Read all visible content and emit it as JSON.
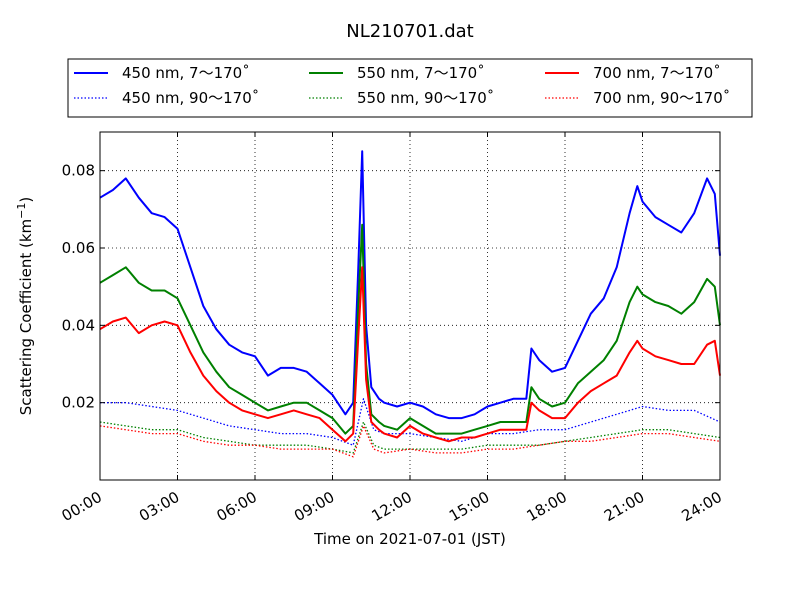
{
  "chart_data": {
    "type": "line",
    "title": "NL210701.dat",
    "xlabel": "Time on 2021-07-01 (JST)",
    "ylabel_main": "Scattering Coefficient (km",
    "ylabel_sup": "−1",
    "ylabel_close": ")",
    "xlim_hours": [
      0,
      24
    ],
    "ylim": [
      0,
      0.09
    ],
    "grid": true,
    "legend_position": "top, above plot",
    "x_ticks": [
      {
        "h": 0,
        "label": "00:00"
      },
      {
        "h": 3,
        "label": "03:00"
      },
      {
        "h": 6,
        "label": "06:00"
      },
      {
        "h": 9,
        "label": "09:00"
      },
      {
        "h": 12,
        "label": "12:00"
      },
      {
        "h": 15,
        "label": "15:00"
      },
      {
        "h": 18,
        "label": "18:00"
      },
      {
        "h": 21,
        "label": "21:00"
      },
      {
        "h": 24,
        "label": "24:00"
      }
    ],
    "y_ticks": [
      {
        "v": 0.02,
        "label": "0.02"
      },
      {
        "v": 0.04,
        "label": "0.04"
      },
      {
        "v": 0.06,
        "label": "0.06"
      },
      {
        "v": 0.08,
        "label": "0.08"
      }
    ],
    "series": [
      {
        "name": "450 nm, 7～170˚",
        "color": "#0000ff",
        "style": "solid",
        "x": [
          0,
          0.5,
          1,
          1.5,
          2,
          2.5,
          3,
          3.5,
          4,
          4.5,
          5,
          5.5,
          6,
          6.5,
          7,
          7.5,
          8,
          8.5,
          9,
          9.5,
          9.8,
          10,
          10.15,
          10.3,
          10.5,
          10.8,
          11,
          11.5,
          12,
          12.5,
          13,
          13.5,
          14,
          14.5,
          15,
          15.5,
          16,
          16.5,
          16.7,
          17,
          17.5,
          18,
          18.5,
          19,
          19.5,
          20,
          20.5,
          20.8,
          21,
          21.5,
          22,
          22.5,
          23,
          23.5,
          23.8,
          24
        ],
        "y": [
          0.073,
          0.075,
          0.078,
          0.073,
          0.069,
          0.068,
          0.065,
          0.055,
          0.045,
          0.039,
          0.035,
          0.033,
          0.032,
          0.027,
          0.029,
          0.029,
          0.028,
          0.025,
          0.022,
          0.017,
          0.02,
          0.055,
          0.085,
          0.04,
          0.024,
          0.021,
          0.02,
          0.019,
          0.02,
          0.019,
          0.017,
          0.016,
          0.016,
          0.017,
          0.019,
          0.02,
          0.021,
          0.021,
          0.034,
          0.031,
          0.028,
          0.029,
          0.036,
          0.043,
          0.047,
          0.055,
          0.069,
          0.076,
          0.072,
          0.068,
          0.066,
          0.064,
          0.069,
          0.078,
          0.074,
          0.058
        ]
      },
      {
        "name": "550 nm, 7～170˚",
        "color": "#008000",
        "style": "solid",
        "x": [
          0,
          0.5,
          1,
          1.5,
          2,
          2.5,
          3,
          3.5,
          4,
          4.5,
          5,
          5.5,
          6,
          6.5,
          7,
          7.5,
          8,
          8.5,
          9,
          9.5,
          9.8,
          10,
          10.15,
          10.3,
          10.5,
          10.8,
          11,
          11.5,
          12,
          12.5,
          13,
          13.5,
          14,
          14.5,
          15,
          15.5,
          16,
          16.5,
          16.7,
          17,
          17.5,
          18,
          18.5,
          19,
          19.5,
          20,
          20.5,
          20.8,
          21,
          21.5,
          22,
          22.5,
          23,
          23.5,
          23.8,
          24
        ],
        "y": [
          0.051,
          0.053,
          0.055,
          0.051,
          0.049,
          0.049,
          0.047,
          0.04,
          0.033,
          0.028,
          0.024,
          0.022,
          0.02,
          0.018,
          0.019,
          0.02,
          0.02,
          0.018,
          0.016,
          0.012,
          0.014,
          0.045,
          0.066,
          0.03,
          0.017,
          0.015,
          0.014,
          0.013,
          0.016,
          0.014,
          0.012,
          0.012,
          0.012,
          0.013,
          0.014,
          0.015,
          0.015,
          0.015,
          0.024,
          0.021,
          0.019,
          0.02,
          0.025,
          0.028,
          0.031,
          0.036,
          0.046,
          0.05,
          0.048,
          0.046,
          0.045,
          0.043,
          0.046,
          0.052,
          0.05,
          0.04
        ]
      },
      {
        "name": "700 nm, 7～170˚",
        "color": "#ff0000",
        "style": "solid",
        "x": [
          0,
          0.5,
          1,
          1.5,
          2,
          2.5,
          3,
          3.5,
          4,
          4.5,
          5,
          5.5,
          6,
          6.5,
          7,
          7.5,
          8,
          8.5,
          9,
          9.5,
          9.8,
          10,
          10.15,
          10.3,
          10.5,
          10.8,
          11,
          11.5,
          12,
          12.5,
          13,
          13.5,
          14,
          14.5,
          15,
          15.5,
          16,
          16.5,
          16.7,
          17,
          17.5,
          18,
          18.5,
          19,
          19.5,
          20,
          20.5,
          20.8,
          21,
          21.5,
          22,
          22.5,
          23,
          23.5,
          23.8,
          24
        ],
        "y": [
          0.039,
          0.041,
          0.042,
          0.038,
          0.04,
          0.041,
          0.04,
          0.033,
          0.027,
          0.023,
          0.02,
          0.018,
          0.017,
          0.016,
          0.017,
          0.018,
          0.017,
          0.016,
          0.013,
          0.01,
          0.012,
          0.037,
          0.055,
          0.026,
          0.015,
          0.013,
          0.012,
          0.011,
          0.014,
          0.012,
          0.011,
          0.01,
          0.011,
          0.011,
          0.012,
          0.013,
          0.013,
          0.013,
          0.02,
          0.018,
          0.016,
          0.016,
          0.02,
          0.023,
          0.025,
          0.027,
          0.033,
          0.036,
          0.034,
          0.032,
          0.031,
          0.03,
          0.03,
          0.035,
          0.036,
          0.027
        ]
      },
      {
        "name": "450 nm, 90～170˚",
        "color": "#0000ff",
        "style": "dotted",
        "x": [
          0,
          1,
          2,
          3,
          4,
          5,
          6,
          7,
          8,
          9,
          9.8,
          10.2,
          10.6,
          11,
          12,
          13,
          14,
          15,
          16,
          17,
          18,
          19,
          20,
          21,
          22,
          23,
          24
        ],
        "y": [
          0.02,
          0.02,
          0.019,
          0.018,
          0.016,
          0.014,
          0.013,
          0.012,
          0.012,
          0.011,
          0.009,
          0.021,
          0.013,
          0.012,
          0.012,
          0.011,
          0.01,
          0.012,
          0.012,
          0.013,
          0.013,
          0.015,
          0.017,
          0.019,
          0.018,
          0.018,
          0.015
        ]
      },
      {
        "name": "550 nm, 90～170˚",
        "color": "#008000",
        "style": "dotted",
        "x": [
          0,
          1,
          2,
          3,
          4,
          5,
          6,
          7,
          8,
          9,
          9.8,
          10.2,
          10.6,
          11,
          12,
          13,
          14,
          15,
          16,
          17,
          18,
          19,
          20,
          21,
          22,
          23,
          24
        ],
        "y": [
          0.015,
          0.014,
          0.013,
          0.013,
          0.011,
          0.01,
          0.009,
          0.009,
          0.009,
          0.008,
          0.007,
          0.015,
          0.009,
          0.008,
          0.008,
          0.008,
          0.008,
          0.009,
          0.009,
          0.009,
          0.01,
          0.011,
          0.012,
          0.013,
          0.013,
          0.012,
          0.011
        ]
      },
      {
        "name": "700 nm, 90～170˚",
        "color": "#ff0000",
        "style": "dotted",
        "x": [
          0,
          1,
          2,
          3,
          4,
          5,
          6,
          7,
          8,
          9,
          9.8,
          10.2,
          10.6,
          11,
          12,
          13,
          14,
          15,
          16,
          17,
          18,
          19,
          20,
          21,
          22,
          23,
          24
        ],
        "y": [
          0.014,
          0.013,
          0.012,
          0.012,
          0.01,
          0.009,
          0.009,
          0.008,
          0.008,
          0.008,
          0.006,
          0.014,
          0.008,
          0.007,
          0.008,
          0.007,
          0.007,
          0.008,
          0.008,
          0.009,
          0.01,
          0.01,
          0.011,
          0.012,
          0.012,
          0.011,
          0.01
        ]
      }
    ]
  }
}
